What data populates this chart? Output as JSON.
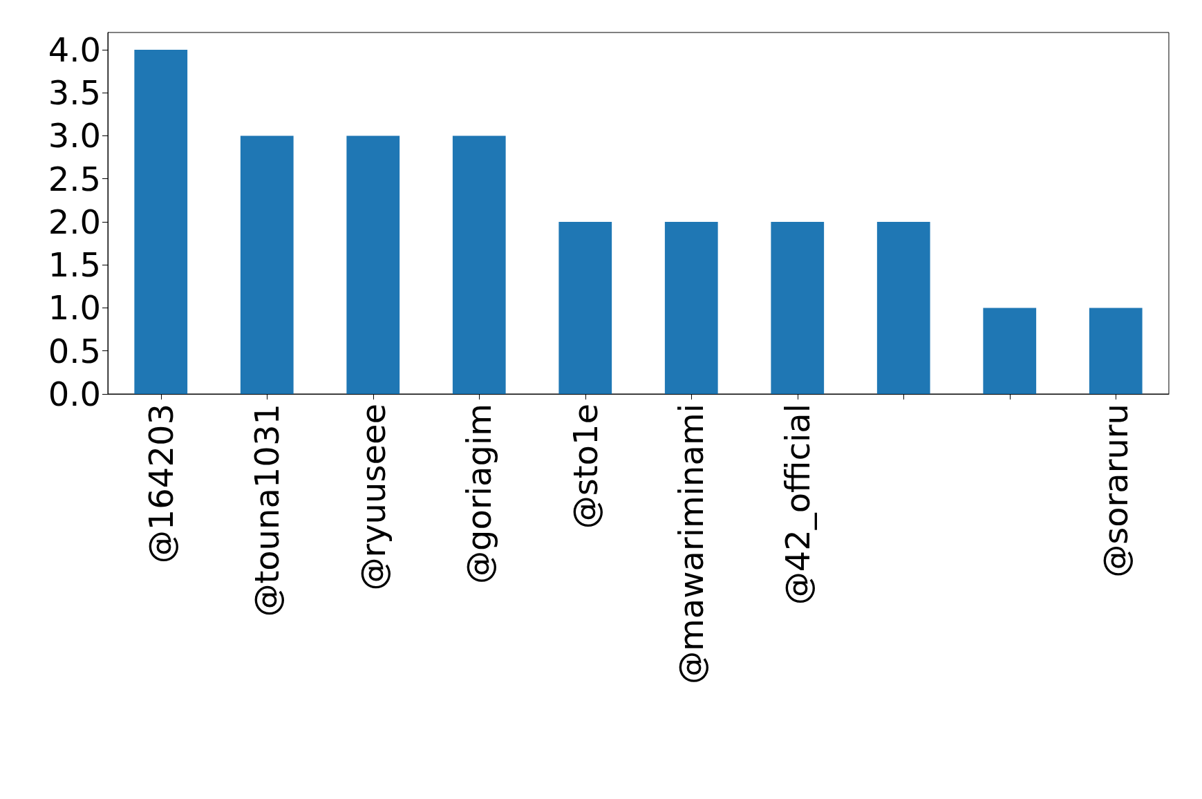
{
  "chart_data": {
    "type": "bar",
    "categories": [
      "@164203",
      "@touna1031",
      "@ryuuseee",
      "@goriagim",
      "@sto1e",
      "@mawariminami",
      "@42_official",
      null,
      null,
      "@soraruru"
    ],
    "values": [
      4,
      3,
      3,
      3,
      2,
      2,
      2,
      2,
      1,
      1
    ],
    "color": "#1f77b4",
    "ylim": [
      0,
      4.2
    ],
    "yticks": [
      {
        "value": 0,
        "label": "0.0"
      },
      {
        "value": 0.5,
        "label": "0.5"
      },
      {
        "value": 1,
        "label": "1.0"
      },
      {
        "value": 1.5,
        "label": "1.5"
      },
      {
        "value": 2,
        "label": "2.0"
      },
      {
        "value": 2.5,
        "label": "2.5"
      },
      {
        "value": 3,
        "label": "3.0"
      },
      {
        "value": 3.5,
        "label": "3.5"
      },
      {
        "value": 4,
        "label": "4.0"
      }
    ],
    "grid": false
  }
}
